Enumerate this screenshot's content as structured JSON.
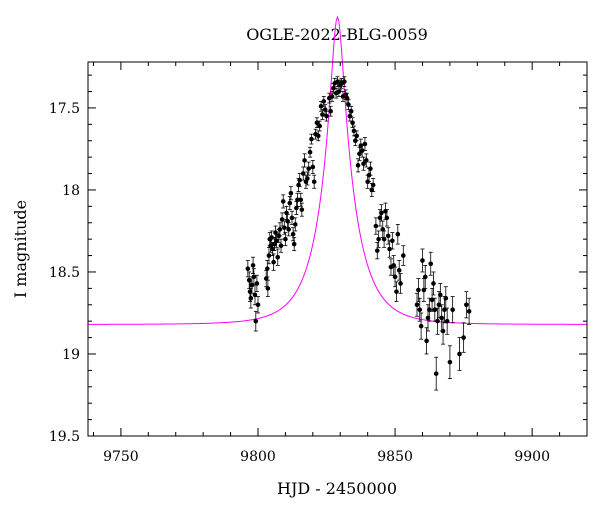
{
  "chart_data": {
    "type": "scatter",
    "title": "OGLE-2022-BLG-0059",
    "xlabel": "HJD - 2450000",
    "ylabel": "I magnitude",
    "xlim": [
      9738,
      9920
    ],
    "ylim": [
      17.22,
      19.5
    ],
    "y_inverted": true,
    "grid": false,
    "legend": "none",
    "x_ticks": [
      9750,
      9800,
      9850,
      9900
    ],
    "y_ticks": [
      17.5,
      18,
      18.5,
      19,
      19.5
    ],
    "y_tick_labels": [
      "17.5",
      "18",
      "18.5",
      "19",
      "19.5"
    ],
    "colors": {
      "points": "#000000",
      "model": "#ff00ff",
      "axes": "#000000"
    },
    "model": {
      "name": "",
      "t0": 9829,
      "u0": 0.18,
      "tE": 12,
      "baseline": 18.82
    },
    "series": [
      {
        "name": "",
        "points": [
          [
            9796.3,
            18.48,
            0.05
          ],
          [
            9796.8,
            18.55,
            0.05
          ],
          [
            9797.1,
            18.62,
            0.06
          ],
          [
            9797.4,
            18.66,
            0.06
          ],
          [
            9797.8,
            18.58,
            0.05
          ],
          [
            9798.2,
            18.46,
            0.05
          ],
          [
            9798.5,
            18.53,
            0.05
          ],
          [
            9798.9,
            18.64,
            0.06
          ],
          [
            9799.2,
            18.8,
            0.06
          ],
          [
            9799.6,
            18.57,
            0.05
          ],
          [
            9800.0,
            18.7,
            0.05
          ],
          [
            9803.0,
            18.54,
            0.05
          ],
          [
            9803.4,
            18.48,
            0.05
          ],
          [
            9803.6,
            18.6,
            0.05
          ],
          [
            9804.0,
            18.4,
            0.05
          ],
          [
            9804.3,
            18.3,
            0.04
          ],
          [
            9804.6,
            18.34,
            0.04
          ],
          [
            9805.0,
            18.29,
            0.04
          ],
          [
            9805.3,
            18.36,
            0.04
          ],
          [
            9805.7,
            18.44,
            0.05
          ],
          [
            9806.0,
            18.33,
            0.04
          ],
          [
            9806.4,
            18.26,
            0.04
          ],
          [
            9806.8,
            18.31,
            0.04
          ],
          [
            9807.2,
            18.41,
            0.05
          ],
          [
            9807.6,
            18.28,
            0.04
          ],
          [
            9808.0,
            18.24,
            0.04
          ],
          [
            9808.4,
            18.34,
            0.04
          ],
          [
            9808.8,
            18.18,
            0.04
          ],
          [
            9809.2,
            18.07,
            0.04
          ],
          [
            9809.6,
            18.23,
            0.04
          ],
          [
            9810.0,
            18.3,
            0.04
          ],
          [
            9810.4,
            18.14,
            0.04
          ],
          [
            9810.8,
            18.19,
            0.04
          ],
          [
            9811.2,
            18.24,
            0.04
          ],
          [
            9811.6,
            18.08,
            0.04
          ],
          [
            9812.0,
            18.02,
            0.04
          ],
          [
            9812.4,
            18.17,
            0.04
          ],
          [
            9812.8,
            18.27,
            0.04
          ],
          [
            9813.2,
            18.33,
            0.04
          ],
          [
            9813.6,
            18.21,
            0.04
          ],
          [
            9814.0,
            18.11,
            0.04
          ],
          [
            9814.4,
            18.06,
            0.04
          ],
          [
            9814.8,
            17.97,
            0.04
          ],
          [
            9815.2,
            17.94,
            0.04
          ],
          [
            9815.6,
            18.06,
            0.04
          ],
          [
            9816.0,
            18.12,
            0.04
          ],
          [
            9816.5,
            17.9,
            0.04
          ],
          [
            9817.0,
            17.82,
            0.04
          ],
          [
            9817.5,
            17.95,
            0.04
          ],
          [
            9818.0,
            17.93,
            0.04
          ],
          [
            9818.5,
            17.87,
            0.04
          ],
          [
            9819.0,
            17.77,
            0.03
          ],
          [
            9819.5,
            17.69,
            0.03
          ],
          [
            9820.0,
            17.86,
            0.04
          ],
          [
            9820.5,
            17.95,
            0.04
          ],
          [
            9821.0,
            17.66,
            0.03
          ],
          [
            9821.5,
            17.59,
            0.03
          ],
          [
            9822.0,
            17.67,
            0.03
          ],
          [
            9822.5,
            17.61,
            0.03
          ],
          [
            9823.0,
            17.49,
            0.03
          ],
          [
            9823.5,
            17.54,
            0.03
          ],
          [
            9824.0,
            17.46,
            0.03
          ],
          [
            9824.5,
            17.51,
            0.03
          ],
          [
            9825.0,
            17.55,
            0.03
          ],
          [
            9826.0,
            17.44,
            0.03
          ],
          [
            9826.5,
            17.52,
            0.03
          ],
          [
            9827.0,
            17.43,
            0.03
          ],
          [
            9827.5,
            17.38,
            0.03
          ],
          [
            9828.0,
            17.35,
            0.03
          ],
          [
            9828.5,
            17.41,
            0.03
          ],
          [
            9829.0,
            17.34,
            0.03
          ],
          [
            9829.5,
            17.4,
            0.03
          ],
          [
            9830.0,
            17.36,
            0.03
          ],
          [
            9830.5,
            17.35,
            0.03
          ],
          [
            9831.0,
            17.43,
            0.03
          ],
          [
            9831.5,
            17.34,
            0.03
          ],
          [
            9832.0,
            17.42,
            0.03
          ],
          [
            9832.5,
            17.44,
            0.03
          ],
          [
            9833.0,
            17.48,
            0.03
          ],
          [
            9833.5,
            17.55,
            0.03
          ],
          [
            9834.0,
            17.52,
            0.03
          ],
          [
            9834.5,
            17.59,
            0.03
          ],
          [
            9835.0,
            17.64,
            0.03
          ],
          [
            9835.5,
            17.7,
            0.03
          ],
          [
            9836.0,
            17.67,
            0.03
          ],
          [
            9836.5,
            17.85,
            0.04
          ],
          [
            9837.0,
            17.78,
            0.04
          ],
          [
            9837.5,
            17.73,
            0.04
          ],
          [
            9838.0,
            17.76,
            0.04
          ],
          [
            9838.5,
            17.84,
            0.04
          ],
          [
            9839.0,
            17.72,
            0.04
          ],
          [
            9839.5,
            17.82,
            0.04
          ],
          [
            9840.0,
            17.95,
            0.04
          ],
          [
            9840.5,
            17.91,
            0.04
          ],
          [
            9841.0,
            17.87,
            0.04
          ],
          [
            9841.5,
            18.0,
            0.04
          ],
          [
            9842.0,
            17.97,
            0.04
          ],
          [
            9843.0,
            18.22,
            0.05
          ],
          [
            9843.5,
            18.37,
            0.05
          ],
          [
            9844.0,
            18.3,
            0.05
          ],
          [
            9844.5,
            18.17,
            0.05
          ],
          [
            9845.0,
            18.14,
            0.05
          ],
          [
            9845.5,
            18.24,
            0.05
          ],
          [
            9846.0,
            18.3,
            0.05
          ],
          [
            9846.5,
            18.13,
            0.05
          ],
          [
            9847.0,
            18.17,
            0.05
          ],
          [
            9847.5,
            18.28,
            0.05
          ],
          [
            9848.0,
            18.36,
            0.05
          ],
          [
            9848.5,
            18.47,
            0.05
          ],
          [
            9849.0,
            18.31,
            0.05
          ],
          [
            9849.5,
            18.46,
            0.06
          ],
          [
            9850.0,
            18.53,
            0.06
          ],
          [
            9850.5,
            18.62,
            0.06
          ],
          [
            9851.0,
            18.27,
            0.06
          ],
          [
            9851.5,
            18.49,
            0.06
          ],
          [
            9852.0,
            18.57,
            0.06
          ],
          [
            9853.0,
            18.4,
            0.06
          ],
          [
            9858.0,
            18.7,
            0.07
          ],
          [
            9858.5,
            18.61,
            0.07
          ],
          [
            9859.0,
            18.73,
            0.07
          ],
          [
            9859.5,
            18.83,
            0.08
          ],
          [
            9860.0,
            18.43,
            0.07
          ],
          [
            9860.5,
            18.61,
            0.07
          ],
          [
            9861.0,
            18.53,
            0.07
          ],
          [
            9861.5,
            18.92,
            0.08
          ],
          [
            9862.0,
            18.78,
            0.08
          ],
          [
            9862.5,
            18.73,
            0.07
          ],
          [
            9863.0,
            18.45,
            0.07
          ],
          [
            9863.5,
            18.67,
            0.07
          ],
          [
            9864.0,
            18.57,
            0.07
          ],
          [
            9864.5,
            18.73,
            0.07
          ],
          [
            9865.0,
            19.12,
            0.1
          ],
          [
            9865.5,
            18.8,
            0.08
          ],
          [
            9866.0,
            18.7,
            0.08
          ],
          [
            9866.5,
            18.64,
            0.07
          ],
          [
            9867.0,
            18.78,
            0.08
          ],
          [
            9867.5,
            18.86,
            0.08
          ],
          [
            9868.0,
            18.73,
            0.08
          ],
          [
            9868.5,
            18.66,
            0.07
          ],
          [
            9869.0,
            18.8,
            0.08
          ],
          [
            9870.0,
            19.05,
            0.1
          ],
          [
            9871.0,
            18.73,
            0.08
          ],
          [
            9873.5,
            19.0,
            0.1
          ],
          [
            9875.0,
            18.9,
            0.09
          ],
          [
            9876.0,
            18.7,
            0.08
          ],
          [
            9877.0,
            18.74,
            0.08
          ]
        ]
      }
    ]
  }
}
